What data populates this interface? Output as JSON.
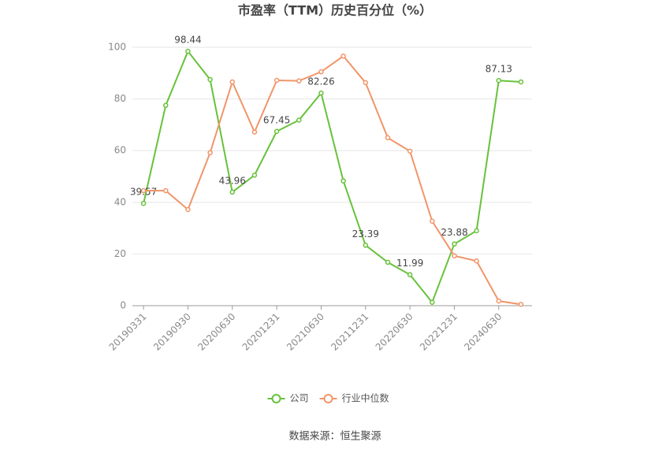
{
  "chart_data": {
    "type": "line",
    "title": "市盈率（TTM）历史百分位（%）",
    "source": "数据来源：恒生聚源",
    "categories": [
      "20190331",
      null,
      "20190930",
      null,
      "20200630",
      null,
      "20201231",
      null,
      "20210630",
      null,
      "20211231",
      null,
      "20220630",
      null,
      "20221231",
      null,
      "20240630",
      null
    ],
    "series": [
      {
        "name": "公司",
        "color": "#67c23a",
        "values": [
          39.57,
          77.5,
          98.44,
          87.5,
          43.96,
          50.5,
          67.45,
          71.8,
          82.26,
          48.3,
          23.39,
          16.8,
          11.99,
          1.3,
          23.88,
          29.0,
          87.13,
          86.6
        ],
        "value_labels": [
          "39.57",
          null,
          "98.44",
          null,
          "43.96",
          null,
          "67.45",
          null,
          "82.26",
          null,
          "23.39",
          null,
          "11.99",
          null,
          "23.88",
          null,
          "87.13",
          null
        ]
      },
      {
        "name": "行业中位数",
        "color": "#f0956a",
        "values": [
          44.5,
          44.5,
          37.2,
          59.2,
          86.6,
          67.2,
          87.2,
          87.0,
          90.5,
          96.6,
          86.3,
          65.0,
          59.8,
          32.7,
          19.3,
          17.3,
          1.8,
          0.5
        ]
      }
    ],
    "ylim": [
      0,
      100
    ],
    "yticks": [
      0,
      20,
      40,
      60,
      80,
      100
    ],
    "grid": true,
    "legend": "bottom"
  }
}
